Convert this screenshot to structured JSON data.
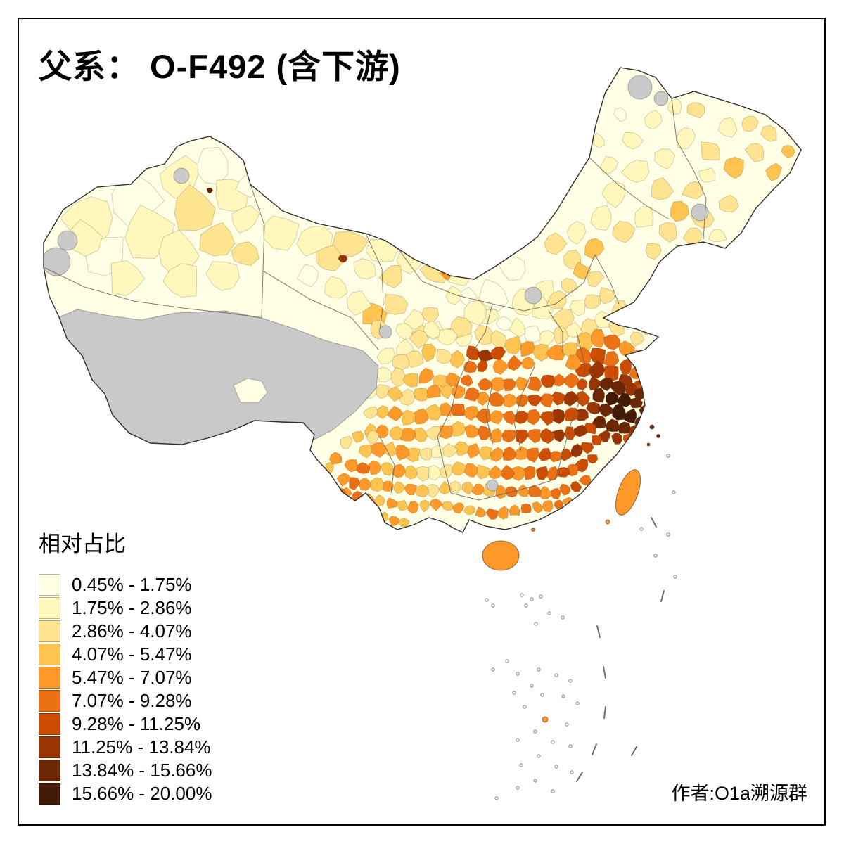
{
  "title": "父系： O-F492 (含下游)",
  "credit": "作者:O1a溯源群",
  "legend": {
    "title": "相对占比",
    "classes": [
      {
        "label": "0.45% - 1.75%",
        "color": "#FFFFE5"
      },
      {
        "label": "1.75% - 2.86%",
        "color": "#FFF7BC"
      },
      {
        "label": "2.86% - 4.07%",
        "color": "#FEE391"
      },
      {
        "label": "4.07% - 5.47%",
        "color": "#FEC44F"
      },
      {
        "label": "5.47% - 7.07%",
        "color": "#FE9929"
      },
      {
        "label": "7.07% - 9.28%",
        "color": "#EC7014"
      },
      {
        "label": "9.28% - 11.25%",
        "color": "#CC4C02"
      },
      {
        "label": "11.25% - 13.84%",
        "color": "#993404"
      },
      {
        "label": "13.84% - 15.66%",
        "color": "#6B2606"
      },
      {
        "label": "15.66% - 20.00%",
        "color": "#421A05"
      }
    ]
  },
  "map": {
    "nodata_color": "#C9C9C9",
    "outline_color": "#2E2E2E"
  }
}
